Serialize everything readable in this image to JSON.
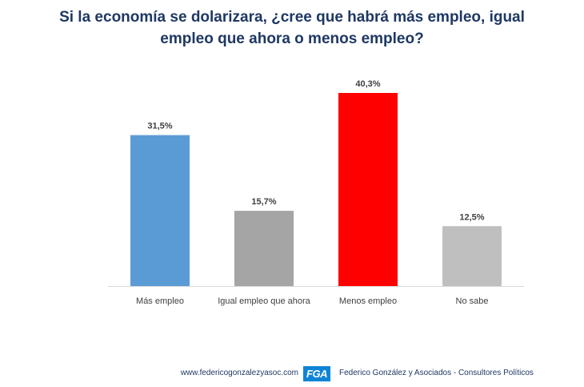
{
  "title": {
    "line1": "Si la economía se dolarizara, ¿cree que habrá más empleo, igual",
    "line2": "empleo que ahora o menos empleo?"
  },
  "chart_data": {
    "type": "bar",
    "categories": [
      "Más empleo",
      "Igual empleo que ahora",
      "Menos empleo",
      "No sabe"
    ],
    "values": [
      31.5,
      15.7,
      40.3,
      12.5
    ],
    "data_labels": [
      "31,5%",
      "15,7%",
      "40,3%",
      "12,5%"
    ],
    "colors": [
      "#5b9bd5",
      "#a5a5a5",
      "#ff0000",
      "#bfbfbf"
    ],
    "ylim": [
      0,
      45
    ],
    "grid": false,
    "legend": "none",
    "xlabel": "",
    "ylabel": ""
  },
  "footer": {
    "url": "www.federicogonzalezyasoc.com",
    "logo_text": "FGA",
    "logo_color": "#0f84d6",
    "firm": "Federico González y Asociados - Consultores Políticos"
  }
}
